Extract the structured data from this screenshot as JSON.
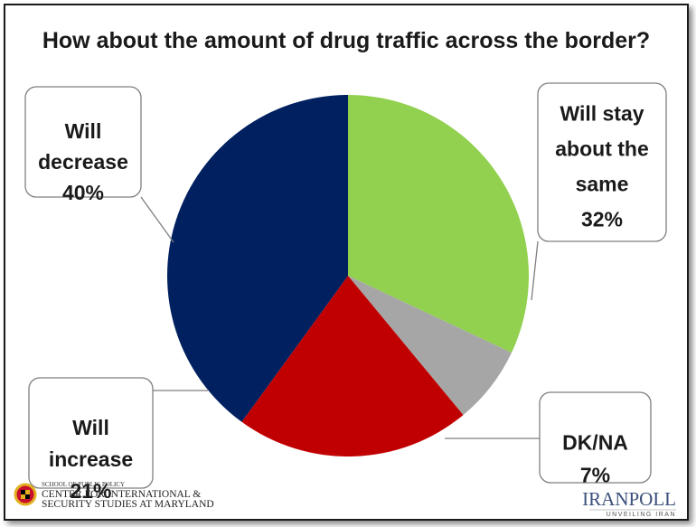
{
  "chart_data": {
    "type": "pie",
    "title": "How about the amount of drug traffic across the border?",
    "start_angle_deg": -90,
    "direction": "clockwise",
    "slices": [
      {
        "key": "stay",
        "label": [
          "Will stay",
          "about the",
          "same"
        ],
        "value_label": "32%",
        "value": 32,
        "color": "#92d050"
      },
      {
        "key": "dk",
        "label": [
          "DK/NA"
        ],
        "value_label": "7%",
        "value": 7,
        "color": "#a6a6a6"
      },
      {
        "key": "increase",
        "label": [
          "Will",
          "increase"
        ],
        "value_label": "21%",
        "value": 21,
        "color": "#c00000"
      },
      {
        "key": "decrease",
        "label": [
          "Will",
          "decrease"
        ],
        "value_label": "40%",
        "value": 40,
        "color": "#002060"
      }
    ]
  },
  "logos": {
    "umd_line1": "SCHOOL OF PUBLIC POLICY",
    "umd_line2": "CENTER FOR INTERNATIONAL &",
    "umd_line3": "SECURITY STUDIES AT MARYLAND",
    "iranpoll_name": "IRANPOLL",
    "iranpoll_tagline": "UNVEILING IRAN"
  }
}
